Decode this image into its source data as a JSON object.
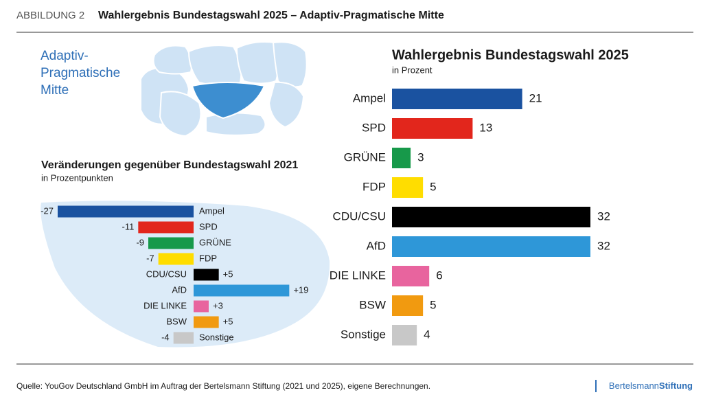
{
  "header": {
    "label": "ABBILDUNG 2",
    "title": "Wahlergebnis Bundestagswahl 2025 – Adaptiv-Pragmatische Mitte"
  },
  "illustration": {
    "label_lines": [
      "Adaptiv-",
      "Pragmatische",
      "Mitte"
    ]
  },
  "chart_data": [
    {
      "type": "bar",
      "title": "Veränderungen gegenüber Bundestagswahl 2021",
      "subtitle": "in Prozentpunkten",
      "categories": [
        "Ampel",
        "SPD",
        "GRÜNE",
        "FDP",
        "CDU/CSU",
        "AfD",
        "DIE LINKE",
        "BSW",
        "Sonstige"
      ],
      "values": [
        -27,
        -11,
        -9,
        -7,
        5,
        19,
        3,
        5,
        -4
      ],
      "value_labels": [
        "-27",
        "-11",
        "-9",
        "-7",
        "+5",
        "+19",
        "+3",
        "+5",
        "-4"
      ],
      "colors": [
        "#1a52a0",
        "#e2261c",
        "#17994a",
        "#ffdd00",
        "#000000",
        "#2e97d8",
        "#e8649e",
        "#f19a10",
        "#c8c8c8"
      ]
    },
    {
      "type": "bar",
      "title": "Wahlergebnis Bundestagswahl 2025",
      "subtitle": "in Prozent",
      "categories": [
        "Ampel",
        "SPD",
        "GRÜNE",
        "FDP",
        "CDU/CSU",
        "AfD",
        "DIE LINKE",
        "BSW",
        "Sonstige"
      ],
      "values": [
        21,
        13,
        3,
        5,
        32,
        32,
        6,
        5,
        4
      ],
      "colors": [
        "#1a52a0",
        "#e2261c",
        "#17994a",
        "#ffdd00",
        "#000000",
        "#2e97d8",
        "#e8649e",
        "#f19a10",
        "#c8c8c8"
      ]
    }
  ],
  "footer": {
    "source": "Quelle: YouGov Deutschland GmbH im Auftrag der Bertelsmann Stiftung (2021 und 2025), eigene Berechnungen.",
    "logo_light": "Bertelsmann",
    "logo_bold": "Stiftung"
  }
}
